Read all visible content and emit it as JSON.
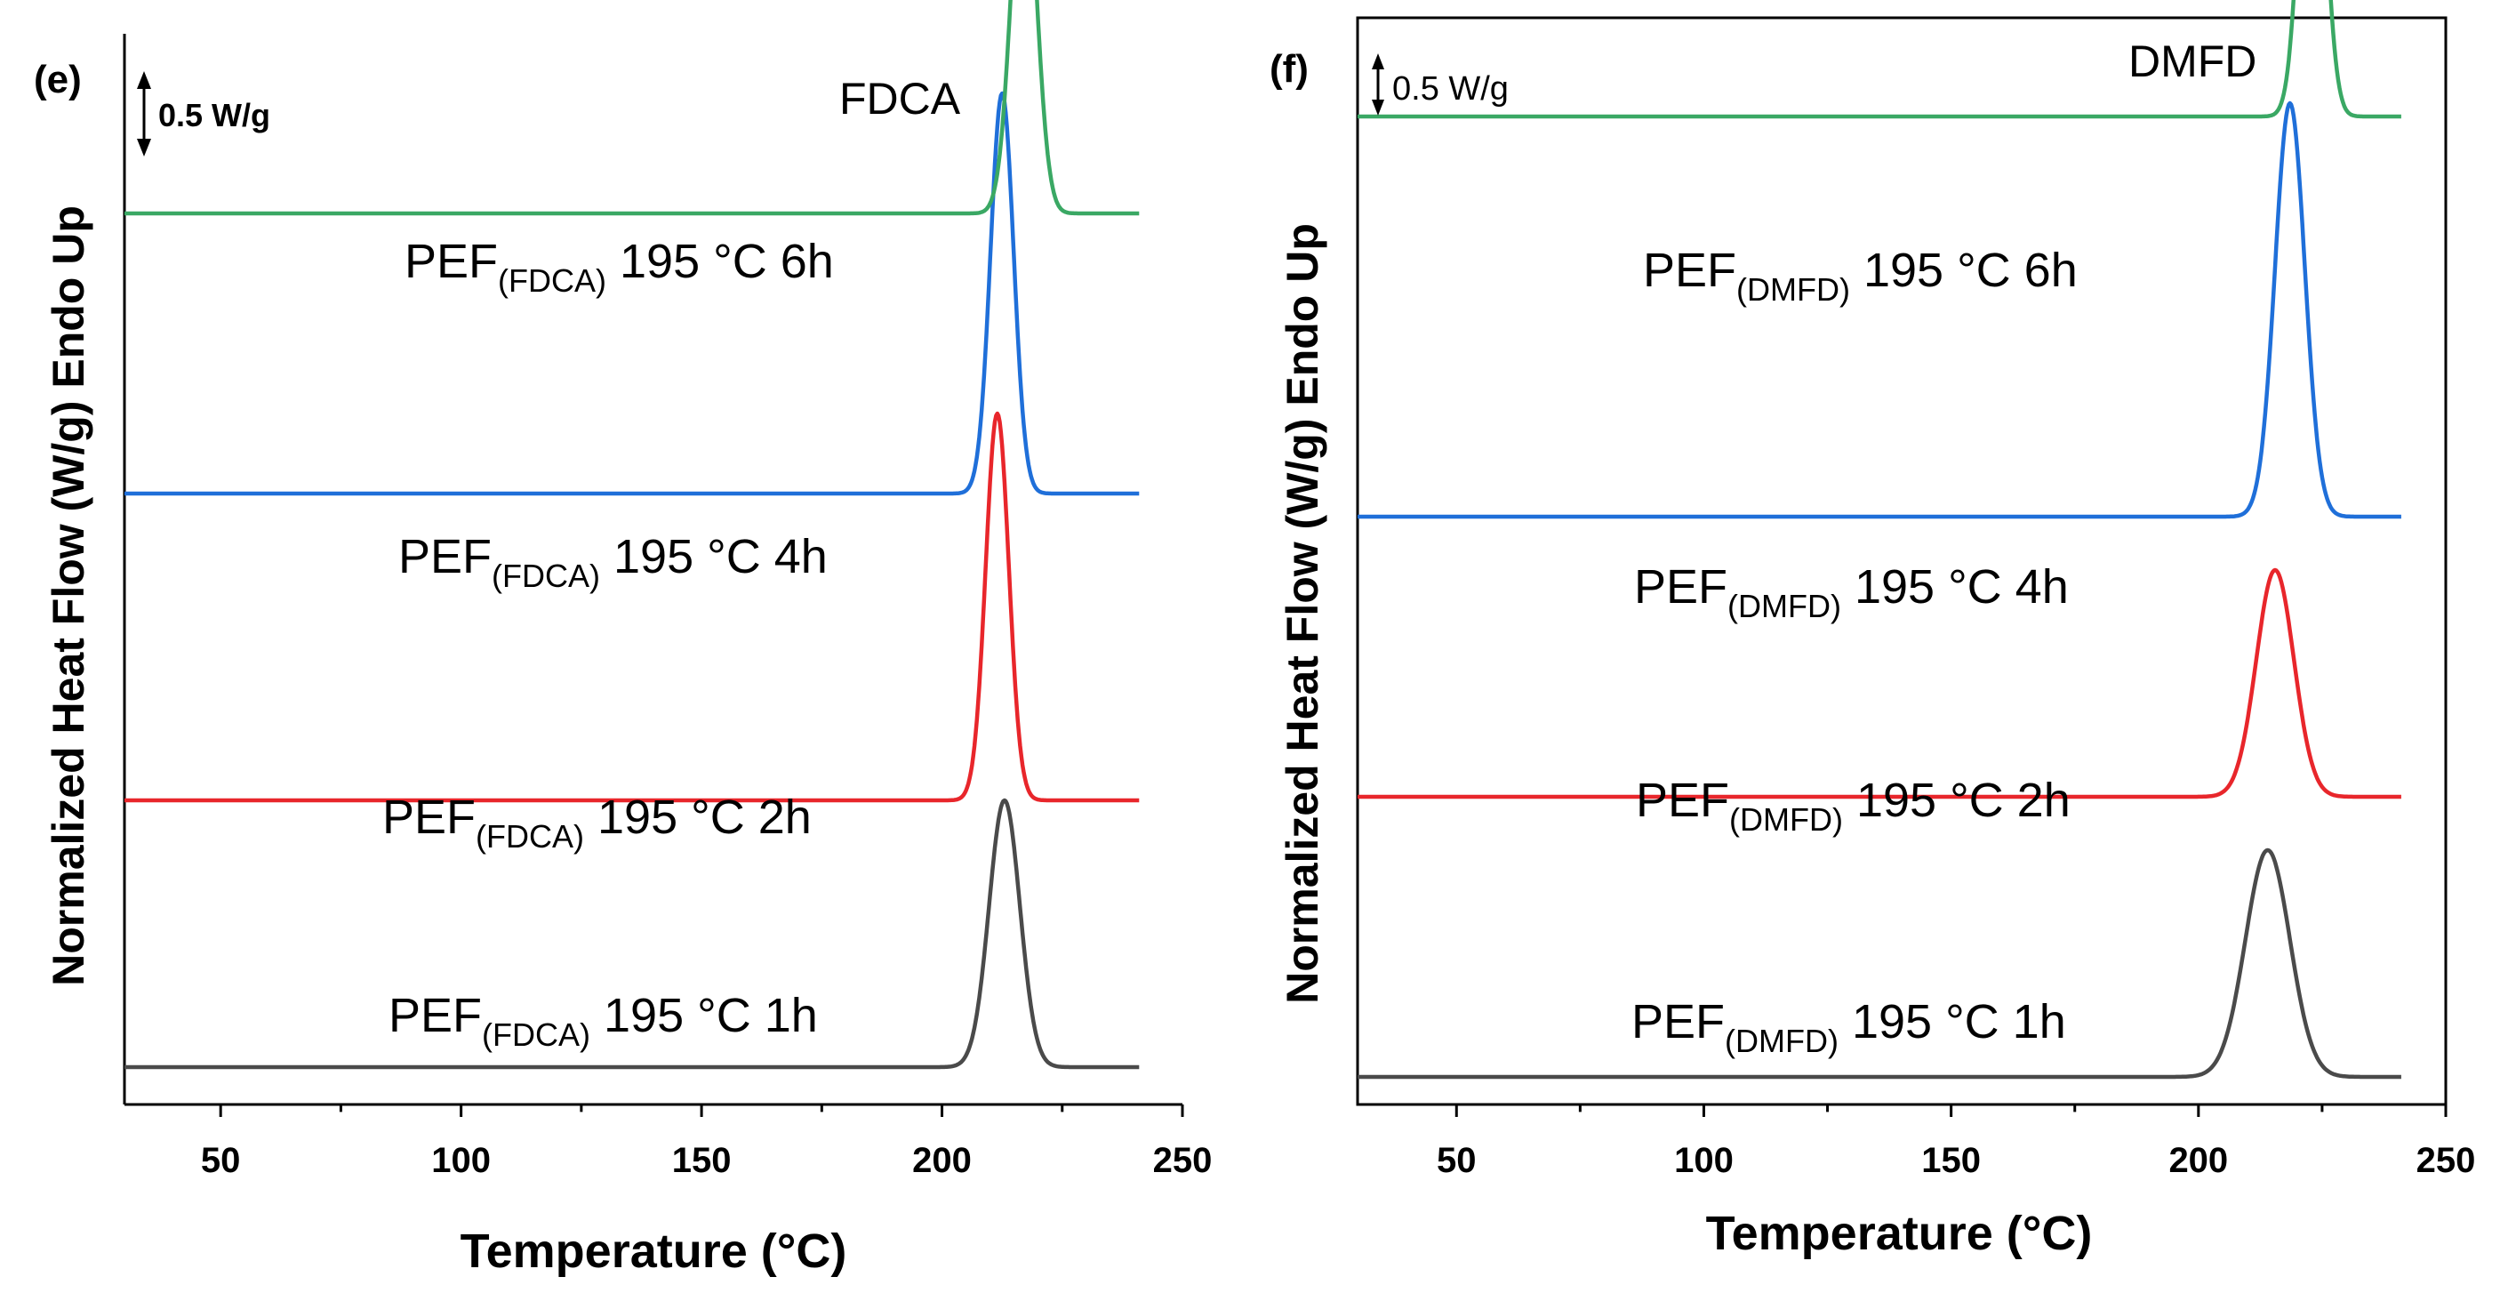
{
  "chart_data": [
    {
      "type": "line",
      "panel_label": "(e)",
      "title": "FDCA",
      "xlabel": "Temperature (°C)",
      "ylabel": "Normalized  Heat Flow (W/g) Endo Up",
      "scale_bar": "0.5 W/g",
      "xlim": [
        30,
        250
      ],
      "xticks": [
        "50",
        "100",
        "150",
        "200",
        "250"
      ],
      "series": [
        {
          "prefix": "PEF",
          "subscript": "(FDCA)",
          "suffix": " 195 °C 1h",
          "color": "#4a4a4a",
          "baseline_level": 0.0,
          "peak_temp": 213,
          "peak_height": 1.0,
          "peak_width": 3.2,
          "x_range": [
            30,
            241
          ]
        },
        {
          "prefix": "PEF",
          "subscript": "(FDCA)",
          "suffix": " 195 °C 2h",
          "color": "#e8262b",
          "baseline_level": 1.0,
          "peak_temp": 211.5,
          "peak_height": 1.45,
          "peak_width": 2.4,
          "x_range": [
            30,
            241
          ]
        },
        {
          "prefix": "PEF",
          "subscript": "(FDCA)",
          "suffix": " 195 °C 4h",
          "color": "#1f6fd9",
          "baseline_level": 2.15,
          "peak_temp": 212.5,
          "peak_height": 1.5,
          "peak_width": 2.4,
          "x_range": [
            30,
            241
          ]
        },
        {
          "prefix": "PEF",
          "subscript": "(FDCA)",
          "suffix": " 195 °C 6h",
          "color": "#3aa864",
          "baseline_level": 3.2,
          "peak_temp": 217,
          "peak_height": 1.4,
          "peak_width": 2.6,
          "x_range": [
            30,
            241
          ]
        }
      ]
    },
    {
      "type": "line",
      "panel_label": "(f)",
      "title": "DMFD",
      "xlabel": "Temperature (°C)",
      "ylabel": "Normalized Heat Flow (W/g) Endo Up",
      "scale_bar": "0.5 W/g",
      "xlim": [
        30,
        250
      ],
      "xticks": [
        "50",
        "100",
        "150",
        "200",
        "250"
      ],
      "series": [
        {
          "prefix": "PEF",
          "subscript": "(DMFD)",
          "suffix": " 195 °C 1h",
          "color": "#4a4a4a",
          "baseline_level": 0.0,
          "peak_temp": 214,
          "peak_height": 0.85,
          "peak_width": 4.5,
          "x_range": [
            30,
            241
          ]
        },
        {
          "prefix": "PEF",
          "subscript": "(DMFD)",
          "suffix": " 195 °C 2h",
          "color": "#e8262b",
          "baseline_level": 1.05,
          "peak_temp": 215.5,
          "peak_height": 0.85,
          "peak_width": 3.8,
          "x_range": [
            30,
            241
          ]
        },
        {
          "prefix": "PEF",
          "subscript": "(DMFD)",
          "suffix": " 195 °C 4h",
          "color": "#1f6fd9",
          "baseline_level": 2.1,
          "peak_temp": 218.5,
          "peak_height": 1.55,
          "peak_width": 3.0,
          "x_range": [
            30,
            241
          ]
        },
        {
          "prefix": "PEF",
          "subscript": "(DMFD)",
          "suffix": " 195 °C 6h",
          "color": "#3aa864",
          "baseline_level": 3.6,
          "peak_temp": 223,
          "peak_height": 1.5,
          "peak_width": 2.4,
          "x_range": [
            30,
            241
          ]
        }
      ]
    }
  ]
}
